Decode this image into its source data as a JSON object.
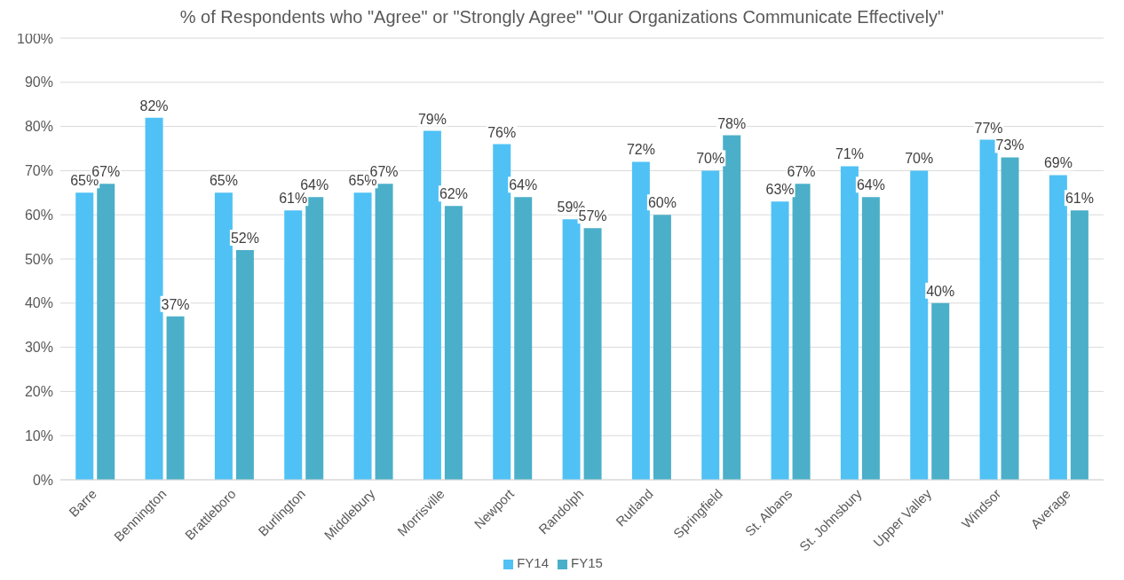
{
  "chart_data": {
    "type": "bar",
    "title": "% of Respondents who \"Agree\" or \"Strongly Agree\" \"Our Organizations Communicate Effectively\"",
    "categories": [
      "Barre",
      "Bennington",
      "Brattleboro",
      "Burlington",
      "Middlebury",
      "Morrisville",
      "Newport",
      "Randolph",
      "Rutland",
      "Springfield",
      "St. Albans",
      "St. Johnsbury",
      "Upper Valley",
      "Windsor",
      "Average"
    ],
    "series": [
      {
        "name": "FY14",
        "color": "#4fc1f5",
        "values": [
          65,
          82,
          65,
          61,
          65,
          79,
          76,
          59,
          72,
          70,
          63,
          71,
          70,
          77,
          69
        ],
        "value_labels": [
          "65%",
          "82%",
          "65%",
          "61%",
          "65%",
          "79%",
          "76%",
          "59%",
          "72%",
          "70%",
          "63%",
          "71%",
          "70%",
          "77%",
          "69%"
        ]
      },
      {
        "name": "FY15",
        "color": "#4bafc9",
        "values": [
          67,
          37,
          52,
          64,
          67,
          62,
          64,
          57,
          60,
          78,
          67,
          64,
          40,
          73,
          61
        ],
        "value_labels": [
          "67%",
          "37%",
          "52%",
          "64%",
          "67%",
          "62%",
          "64%",
          "57%",
          "60%",
          "78%",
          "67%",
          "64%",
          "40%",
          "73%",
          "61%"
        ]
      }
    ],
    "ylim": [
      0,
      100
    ],
    "yticks": [
      {
        "value": 0,
        "label": "0%"
      },
      {
        "value": 10,
        "label": "10%"
      },
      {
        "value": 20,
        "label": "20%"
      },
      {
        "value": 30,
        "label": "30%"
      },
      {
        "value": 40,
        "label": "40%"
      },
      {
        "value": 50,
        "label": "50%"
      },
      {
        "value": 60,
        "label": "60%"
      },
      {
        "value": 70,
        "label": "70%"
      },
      {
        "value": 80,
        "label": "80%"
      },
      {
        "value": 90,
        "label": "90%"
      },
      {
        "value": 100,
        "label": "100%"
      }
    ],
    "grid": "y",
    "legend": "bottom"
  }
}
